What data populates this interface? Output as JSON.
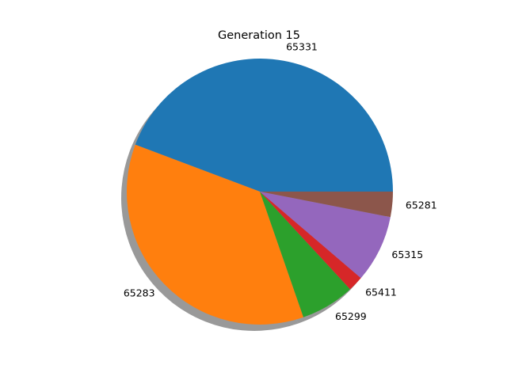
{
  "chart_data": {
    "type": "pie",
    "title": "Generation 15",
    "shadow": true,
    "start_angle_deg": 0,
    "direction": "counterclockwise",
    "slices": [
      {
        "label": "65331",
        "fraction": 0.4426,
        "color": "#1f77b4"
      },
      {
        "label": "65283",
        "fraction": 0.3605,
        "color": "#ff7f0e"
      },
      {
        "label": "65299",
        "fraction": 0.0656,
        "color": "#2ca02c"
      },
      {
        "label": "65411",
        "fraction": 0.0186,
        "color": "#d62728"
      },
      {
        "label": "65315",
        "fraction": 0.082,
        "color": "#9467bd"
      },
      {
        "label": "65281",
        "fraction": 0.0307,
        "color": "#8c564b"
      }
    ]
  }
}
